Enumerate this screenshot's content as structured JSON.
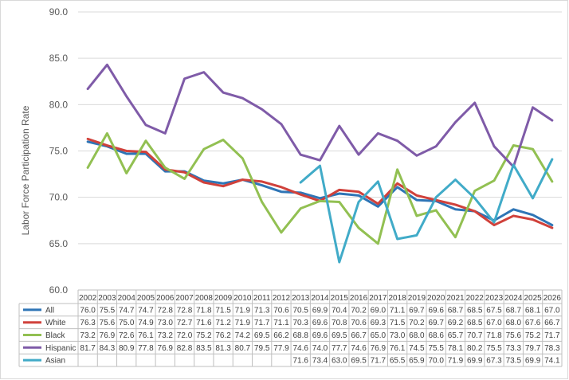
{
  "chart_data": {
    "type": "line",
    "title": "",
    "xlabel": "",
    "ylabel": "Labor Force Participation Rate",
    "ylim": [
      60,
      90
    ],
    "yticks": [
      "60.0",
      "65.0",
      "70.0",
      "75.0",
      "80.0",
      "85.0",
      "90.0"
    ],
    "grid": true,
    "legend": "data-table",
    "categories": [
      "2002",
      "2003",
      "2004",
      "2005",
      "2006",
      "2007",
      "2008",
      "2009",
      "2010",
      "2011",
      "2012",
      "2013",
      "2014",
      "2015",
      "2016",
      "2017",
      "2018",
      "2019",
      "2020",
      "2021",
      "2022",
      "2023",
      "2024",
      "2025",
      "2026"
    ],
    "series": [
      {
        "name": "All",
        "color": "#2e75b6",
        "values": [
          76.0,
          75.5,
          74.7,
          74.7,
          72.8,
          72.8,
          71.8,
          71.5,
          71.9,
          71.3,
          70.6,
          70.5,
          69.9,
          70.4,
          70.2,
          69.0,
          71.1,
          69.7,
          69.6,
          68.7,
          68.5,
          67.5,
          68.7,
          68.1,
          67.0
        ]
      },
      {
        "name": "White",
        "color": "#d0413b",
        "values": [
          76.3,
          75.6,
          75.0,
          74.9,
          73.0,
          72.7,
          71.6,
          71.2,
          71.9,
          71.7,
          71.1,
          70.3,
          69.6,
          70.8,
          70.6,
          69.3,
          71.5,
          70.2,
          69.7,
          69.2,
          68.5,
          67.0,
          68.0,
          67.6,
          66.7
        ]
      },
      {
        "name": "Black",
        "color": "#92c052",
        "values": [
          73.2,
          76.9,
          72.6,
          76.1,
          73.2,
          72.0,
          75.2,
          76.2,
          74.2,
          69.5,
          66.2,
          68.8,
          69.6,
          69.5,
          66.7,
          65.0,
          73.0,
          68.0,
          68.6,
          65.7,
          70.7,
          71.8,
          75.6,
          75.2,
          71.7
        ]
      },
      {
        "name": "Hispanic",
        "color": "#7f5ba8",
        "values": [
          81.7,
          84.3,
          80.9,
          77.8,
          76.9,
          82.8,
          83.5,
          81.3,
          80.7,
          79.5,
          77.9,
          74.6,
          74.0,
          77.7,
          74.6,
          76.9,
          76.1,
          74.5,
          75.5,
          78.1,
          80.2,
          75.5,
          73.3,
          79.7,
          78.3
        ]
      },
      {
        "name": "Asian",
        "color": "#41abc8",
        "values": [
          null,
          null,
          null,
          null,
          null,
          null,
          null,
          null,
          null,
          null,
          null,
          71.6,
          73.4,
          63.0,
          69.5,
          71.7,
          65.5,
          65.9,
          70.0,
          71.9,
          69.9,
          67.3,
          73.5,
          69.9,
          74.1
        ]
      }
    ]
  }
}
